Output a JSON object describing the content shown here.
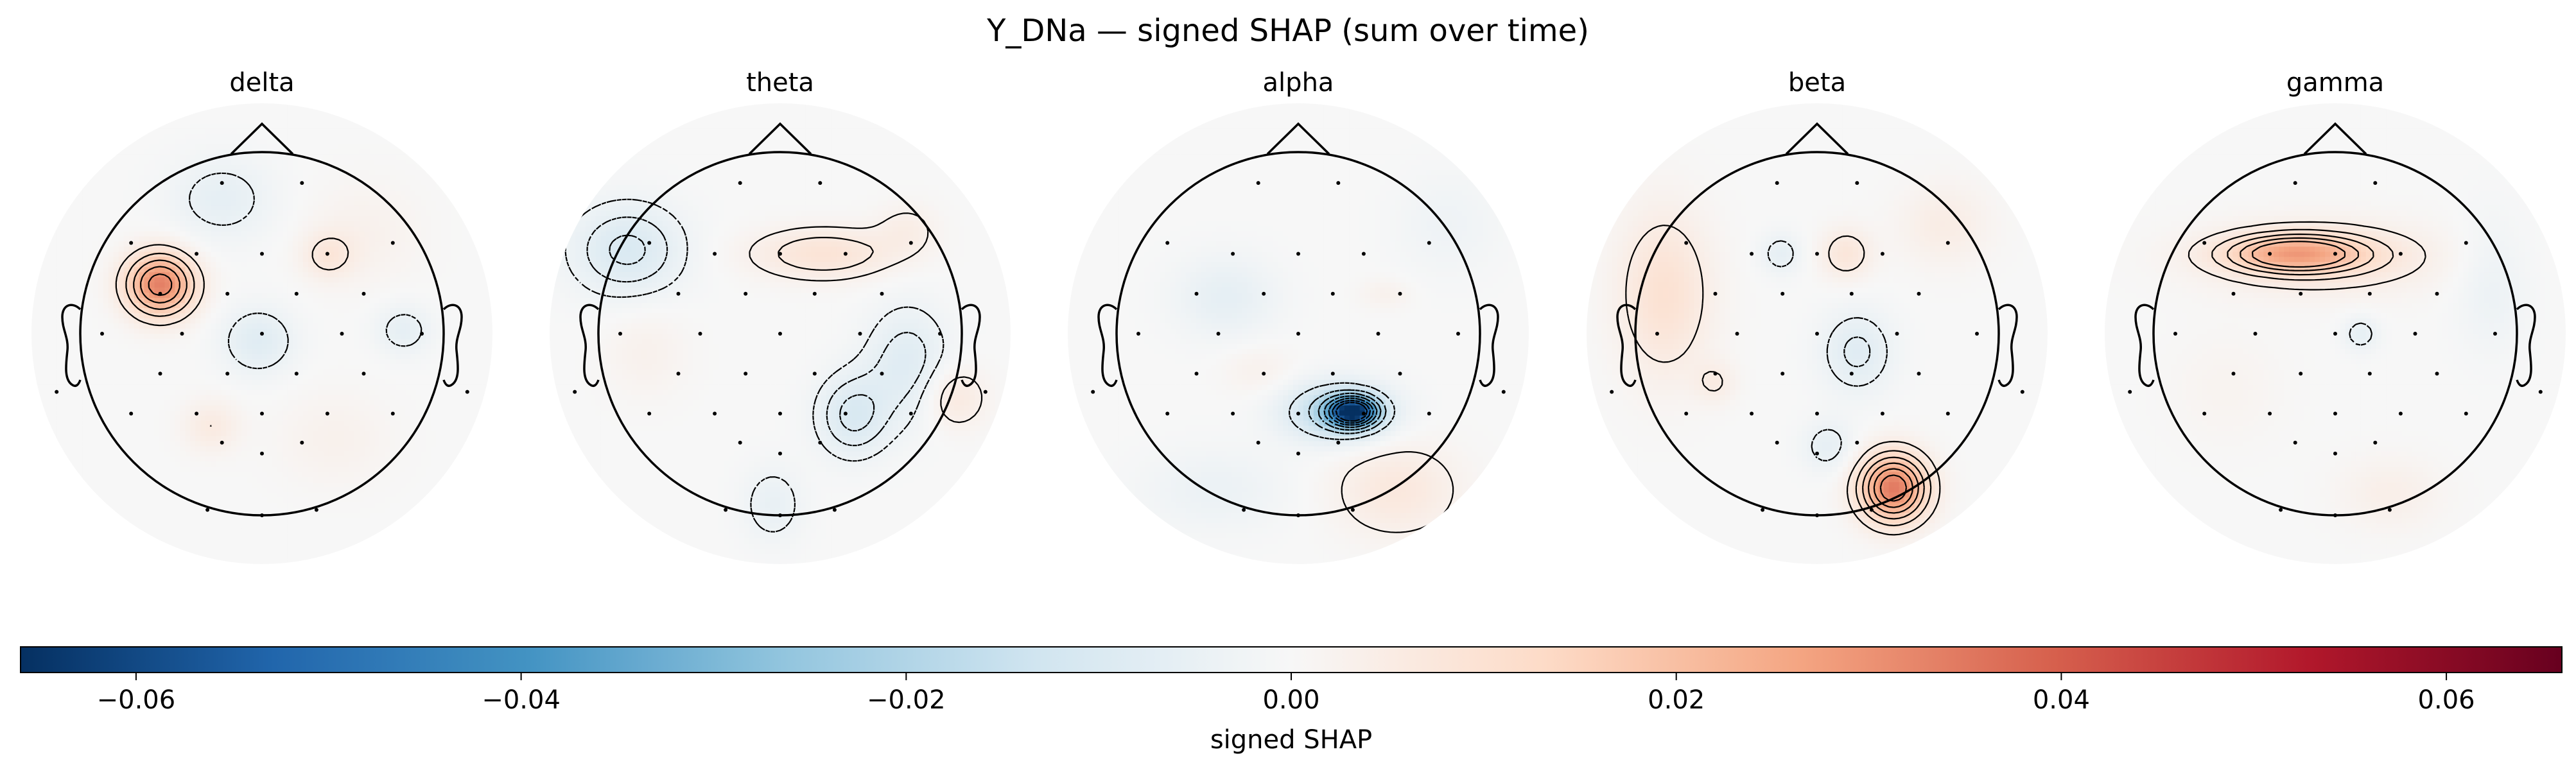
{
  "figure": {
    "title": "Y_DNa — signed SHAP (sum over time)"
  },
  "chart_data": {
    "type": "heatmap",
    "subtype": "topographic scalp maps",
    "title": "Y_DNa — signed SHAP (sum over time)",
    "panels": [
      {
        "title": "delta",
        "blobs": [
          {
            "x": -0.56,
            "y": 0.27,
            "value": 0.034,
            "sx": 0.13,
            "sy": 0.12
          },
          {
            "x": 0.36,
            "y": 0.43,
            "value": 0.007,
            "sx": 0.1,
            "sy": 0.09
          },
          {
            "x": -0.02,
            "y": -0.04,
            "value": -0.008,
            "sx": 0.14,
            "sy": 0.13
          },
          {
            "x": 0.78,
            "y": 0.02,
            "value": -0.006,
            "sx": 0.11,
            "sy": 0.1
          },
          {
            "x": -0.22,
            "y": 0.74,
            "value": -0.006,
            "sx": 0.2,
            "sy": 0.16
          },
          {
            "x": -0.28,
            "y": -0.51,
            "value": 0.006,
            "sx": 0.11,
            "sy": 0.1
          },
          {
            "x": 0.56,
            "y": 0.55,
            "value": 0.003,
            "sx": 0.22,
            "sy": 0.2
          },
          {
            "x": 0.4,
            "y": -0.58,
            "value": 0.003,
            "sx": 0.22,
            "sy": 0.18
          }
        ],
        "contours": [
          0.006,
          0.012,
          0.018,
          0.024,
          0.03,
          -0.004,
          -0.008
        ]
      },
      {
        "title": "theta",
        "blobs": [
          {
            "x": 0.24,
            "y": 0.44,
            "value": 0.009,
            "sx": 0.28,
            "sy": 0.1
          },
          {
            "x": -0.84,
            "y": 0.46,
            "value": -0.01,
            "sx": 0.22,
            "sy": 0.18
          },
          {
            "x": 0.4,
            "y": -0.45,
            "value": -0.01,
            "sx": 0.14,
            "sy": 0.16
          },
          {
            "x": 0.7,
            "y": -0.16,
            "value": -0.008,
            "sx": 0.16,
            "sy": 0.22
          },
          {
            "x": -0.04,
            "y": -0.94,
            "value": -0.005,
            "sx": 0.12,
            "sy": 0.15
          },
          {
            "x": 0.96,
            "y": -0.35,
            "value": 0.007,
            "sx": 0.12,
            "sy": 0.12
          },
          {
            "x": -0.74,
            "y": -0.1,
            "value": 0.003,
            "sx": 0.16,
            "sy": 0.18
          },
          {
            "x": 0.7,
            "y": 0.58,
            "value": 0.004,
            "sx": 0.12,
            "sy": 0.1
          }
        ],
        "contours": [
          0.003,
          0.006,
          -0.003,
          -0.006,
          -0.009
        ]
      },
      {
        "title": "alpha",
        "blobs": [
          {
            "x": 0.3,
            "y": -0.43,
            "value": -0.062,
            "sx": 0.09,
            "sy": 0.055
          },
          {
            "x": 0.22,
            "y": -0.43,
            "value": -0.02,
            "sx": 0.2,
            "sy": 0.11
          },
          {
            "x": -0.4,
            "y": 0.2,
            "value": -0.006,
            "sx": 0.2,
            "sy": 0.16
          },
          {
            "x": -0.22,
            "y": -0.2,
            "value": 0.003,
            "sx": 0.14,
            "sy": 0.1
          },
          {
            "x": 0.48,
            "y": 0.22,
            "value": 0.003,
            "sx": 0.1,
            "sy": 0.06
          },
          {
            "x": 0.54,
            "y": -0.86,
            "value": 0.007,
            "sx": 0.24,
            "sy": 0.18
          },
          {
            "x": -0.46,
            "y": -0.86,
            "value": -0.004,
            "sx": 0.28,
            "sy": 0.16
          },
          {
            "x": 0.82,
            "y": 0.6,
            "value": -0.003,
            "sx": 0.2,
            "sy": 0.2
          }
        ],
        "contours": [
          0.003,
          -0.008,
          -0.016,
          -0.024,
          -0.032,
          -0.04,
          -0.048,
          -0.056
        ]
      },
      {
        "title": "beta",
        "blobs": [
          {
            "x": 0.42,
            "y": -0.85,
            "value": 0.035,
            "sx": 0.13,
            "sy": 0.13
          },
          {
            "x": -0.84,
            "y": 0.22,
            "value": 0.01,
            "sx": 0.18,
            "sy": 0.32
          },
          {
            "x": 0.7,
            "y": 0.6,
            "value": 0.005,
            "sx": 0.18,
            "sy": 0.16
          },
          {
            "x": 0.16,
            "y": 0.44,
            "value": 0.008,
            "sx": 0.1,
            "sy": 0.1
          },
          {
            "x": -0.56,
            "y": -0.27,
            "value": 0.005,
            "sx": 0.08,
            "sy": 0.08
          },
          {
            "x": -0.2,
            "y": 0.44,
            "value": -0.006,
            "sx": 0.08,
            "sy": 0.08
          },
          {
            "x": 0.22,
            "y": -0.1,
            "value": -0.008,
            "sx": 0.14,
            "sy": 0.16
          },
          {
            "x": 0.06,
            "y": -0.62,
            "value": -0.006,
            "sx": 0.1,
            "sy": 0.1
          }
        ],
        "contours": [
          0.005,
          0.01,
          0.015,
          0.02,
          0.025,
          0.03,
          -0.004,
          -0.007
        ]
      },
      {
        "title": "gamma",
        "blobs": [
          {
            "x": -0.22,
            "y": 0.44,
            "value": 0.022,
            "sx": 0.26,
            "sy": 0.07
          },
          {
            "x": -0.08,
            "y": 0.42,
            "value": 0.008,
            "sx": 0.46,
            "sy": 0.14
          },
          {
            "x": 0.14,
            "y": 0.0,
            "value": -0.006,
            "sx": 0.07,
            "sy": 0.07
          },
          {
            "x": 0.86,
            "y": 0.28,
            "value": -0.004,
            "sx": 0.14,
            "sy": 0.26
          },
          {
            "x": 0.3,
            "y": -0.88,
            "value": 0.004,
            "sx": 0.2,
            "sy": 0.14
          },
          {
            "x": -0.6,
            "y": -0.3,
            "value": 0.002,
            "sx": 0.22,
            "sy": 0.22
          }
        ],
        "contours": [
          0.004,
          0.008,
          0.012,
          0.016,
          0.02,
          -0.004
        ]
      }
    ],
    "colorbar": {
      "label": "signed SHAP",
      "colormap": "RdBu_r",
      "range": [
        -0.066,
        0.066
      ],
      "ticks": [
        -0.06,
        -0.04,
        -0.02,
        0.0,
        0.02,
        0.04,
        0.06
      ],
      "tick_labels": [
        "−0.06",
        "−0.04",
        "−0.02",
        "0.00",
        "0.02",
        "0.04",
        "0.06"
      ],
      "orientation": "horizontal",
      "placement": "bottom"
    },
    "grid": false
  }
}
